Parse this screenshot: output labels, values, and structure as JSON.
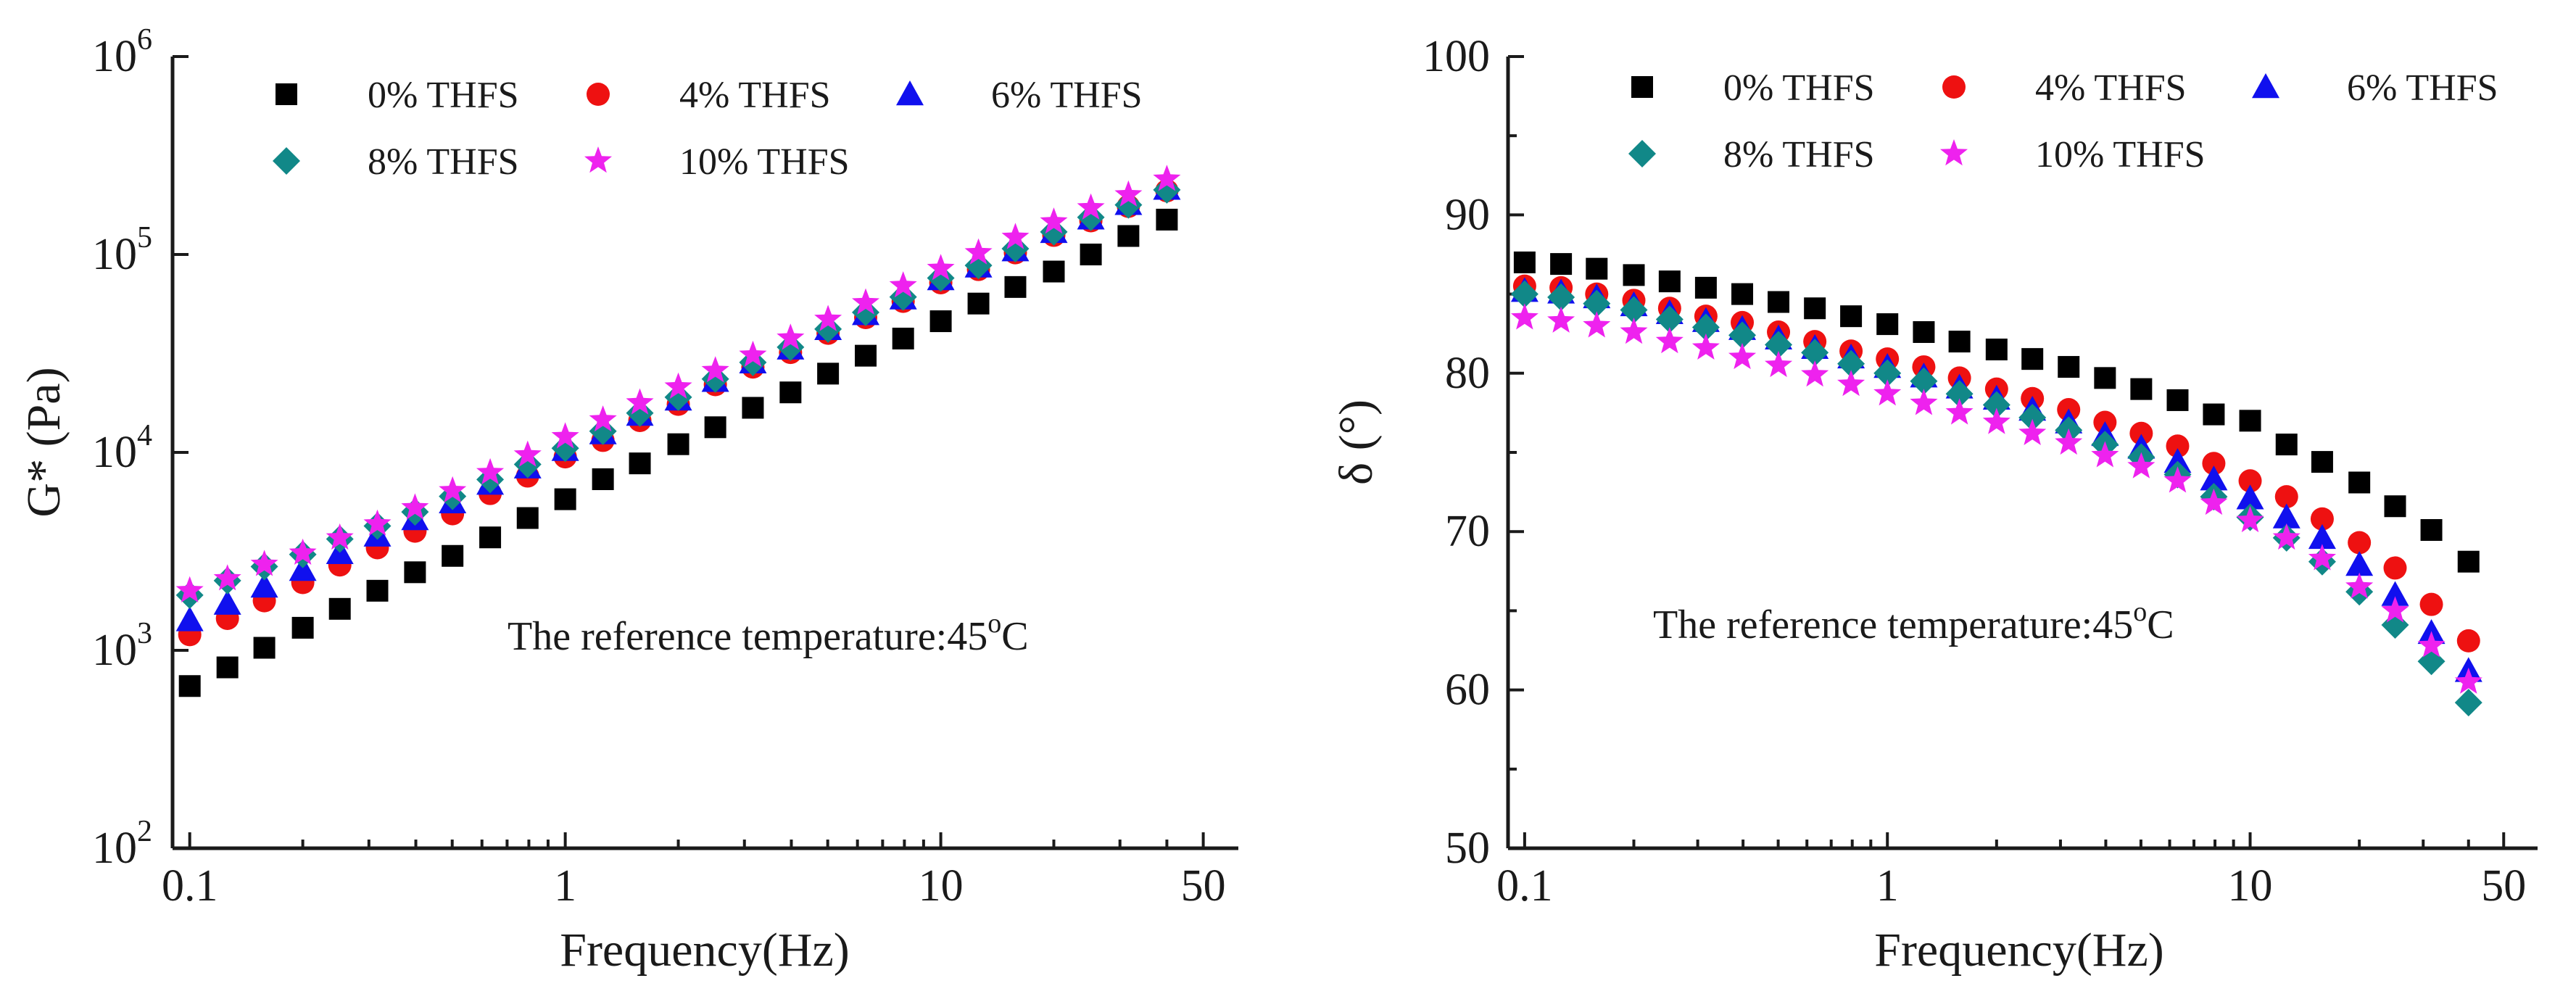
{
  "chart_data": [
    {
      "type": "scatter",
      "xscale": "log",
      "yscale": "log",
      "xlabel": "Frequency(Hz)",
      "ylabel": "G* (Pa)",
      "xlim": [
        0.09,
        62
      ],
      "ylim": [
        100,
        1000000
      ],
      "xticks": [
        {
          "value": 0.1,
          "label": "0.1"
        },
        {
          "value": 1,
          "label": "1"
        },
        {
          "value": 10,
          "label": "10"
        },
        {
          "value": 50,
          "label": "50"
        }
      ],
      "yticks": [
        {
          "value": 100,
          "base": "10",
          "exp": "2"
        },
        {
          "value": 1000,
          "base": "10",
          "exp": "3"
        },
        {
          "value": 10000,
          "base": "10",
          "exp": "4"
        },
        {
          "value": 100000,
          "base": "10",
          "exp": "5"
        },
        {
          "value": 1000000,
          "base": "10",
          "exp": "6"
        }
      ],
      "annotation": {
        "prefix": "The reference temperature:45",
        "sup": "o",
        "suffix": "C"
      },
      "legend_position": "top",
      "x": [
        0.1,
        0.126,
        0.158,
        0.2,
        0.251,
        0.316,
        0.398,
        0.501,
        0.631,
        0.794,
        1.0,
        1.26,
        1.58,
        2.0,
        2.51,
        3.16,
        3.98,
        5.01,
        6.31,
        7.94,
        10.0,
        12.6,
        15.8,
        20.0,
        25.1,
        31.6,
        40.0
      ],
      "series": [
        {
          "name": "0% THFS",
          "marker": "square",
          "color": "#000000",
          "values": [
            660,
            820,
            1030,
            1300,
            1620,
            2000,
            2480,
            3000,
            3720,
            4660,
            5800,
            7320,
            8800,
            11000,
            13400,
            16800,
            20100,
            25000,
            30800,
            37600,
            46000,
            56500,
            68500,
            82000,
            100000,
            124000,
            150000
          ]
        },
        {
          "name": "4% THFS",
          "marker": "circle",
          "color": "#ee1111",
          "values": [
            1200,
            1450,
            1780,
            2200,
            2700,
            3300,
            4000,
            4900,
            6200,
            7600,
            9500,
            11500,
            14500,
            17500,
            22000,
            27000,
            32000,
            40000,
            48000,
            58000,
            72000,
            84000,
            102000,
            125000,
            148000,
            175000,
            210000
          ]
        },
        {
          "name": "6% THFS",
          "marker": "triangle",
          "color": "#1010ee",
          "values": [
            1420,
            1720,
            2100,
            2550,
            3100,
            3800,
            4600,
            5600,
            6950,
            8400,
            10300,
            12500,
            15500,
            18500,
            23000,
            28500,
            33500,
            42000,
            50000,
            60000,
            75000,
            87000,
            105000,
            130000,
            152000,
            180000,
            215000
          ]
        },
        {
          "name": "8% THFS",
          "marker": "diamond",
          "color": "#118888",
          "values": [
            1900,
            2250,
            2650,
            3050,
            3650,
            4250,
            5000,
            6000,
            7300,
            8700,
            10500,
            12800,
            15800,
            19000,
            23500,
            28500,
            34000,
            42000,
            51000,
            61000,
            76000,
            88000,
            107000,
            130000,
            154000,
            178000,
            212000
          ]
        },
        {
          "name": "10% THFS",
          "marker": "star",
          "color": "#ee22ee",
          "values": [
            2000,
            2300,
            2720,
            3100,
            3700,
            4350,
            5250,
            6400,
            7900,
            9700,
            12000,
            14600,
            17800,
            21400,
            25900,
            31000,
            37800,
            47000,
            57000,
            69500,
            85000,
            102000,
            122000,
            146000,
            172000,
            200000,
            240000
          ]
        }
      ]
    },
    {
      "type": "scatter",
      "xscale": "log",
      "yscale": "linear",
      "xlabel": "Frequency(Hz)",
      "ylabel": "δ (°)",
      "xlim": [
        0.09,
        62
      ],
      "ylim": [
        50,
        100
      ],
      "xticks": [
        {
          "value": 0.1,
          "label": "0.1"
        },
        {
          "value": 1,
          "label": "1"
        },
        {
          "value": 10,
          "label": "10"
        },
        {
          "value": 50,
          "label": "50"
        }
      ],
      "yticks": [
        {
          "value": 50,
          "label": "50"
        },
        {
          "value": 60,
          "label": "60"
        },
        {
          "value": 70,
          "label": "70"
        },
        {
          "value": 80,
          "label": "80"
        },
        {
          "value": 90,
          "label": "90"
        },
        {
          "value": 100,
          "label": "100"
        }
      ],
      "annotation": {
        "prefix": "The reference temperature:45",
        "sup": "o",
        "suffix": "C"
      },
      "legend_position": "top",
      "x": [
        0.1,
        0.126,
        0.158,
        0.2,
        0.251,
        0.316,
        0.398,
        0.501,
        0.631,
        0.794,
        1.0,
        1.26,
        1.58,
        2.0,
        2.51,
        3.16,
        3.98,
        5.01,
        6.31,
        7.94,
        10.0,
        12.6,
        15.8,
        20.0,
        25.1,
        31.6,
        40.0
      ],
      "series": [
        {
          "name": "0% THFS",
          "marker": "square",
          "color": "#000000",
          "values": [
            87.0,
            86.9,
            86.6,
            86.2,
            85.8,
            85.4,
            85.0,
            84.5,
            84.1,
            83.6,
            83.1,
            82.6,
            82.0,
            81.5,
            80.9,
            80.4,
            79.7,
            79.0,
            78.3,
            77.4,
            77.0,
            75.5,
            74.4,
            73.1,
            71.6,
            70.1,
            68.1
          ]
        },
        {
          "name": "4% THFS",
          "marker": "circle",
          "color": "#ee1111",
          "values": [
            85.5,
            85.4,
            85.0,
            84.6,
            84.1,
            83.6,
            83.2,
            82.6,
            82.0,
            81.4,
            80.9,
            80.4,
            79.7,
            79.0,
            78.4,
            77.7,
            76.9,
            76.2,
            75.4,
            74.3,
            73.2,
            72.2,
            70.8,
            69.3,
            67.7,
            65.4,
            63.1
          ]
        },
        {
          "name": "6% THFS",
          "marker": "triangle",
          "color": "#1010ee",
          "values": [
            85.2,
            85.1,
            84.8,
            84.3,
            83.8,
            83.3,
            82.8,
            82.2,
            81.6,
            81.0,
            80.4,
            79.8,
            79.1,
            78.4,
            77.7,
            76.9,
            76.1,
            75.3,
            74.4,
            73.3,
            72.1,
            70.9,
            69.6,
            67.9,
            66.0,
            63.6,
            61.2
          ]
        },
        {
          "name": "8% THFS",
          "marker": "diamond",
          "color": "#118888",
          "values": [
            85.0,
            84.8,
            84.4,
            84.0,
            83.4,
            82.9,
            82.4,
            81.8,
            81.3,
            80.6,
            80.0,
            79.5,
            78.7,
            78.0,
            77.2,
            76.4,
            75.5,
            74.7,
            73.6,
            72.2,
            70.9,
            69.6,
            68.1,
            66.2,
            64.1,
            61.8,
            59.2
          ]
        },
        {
          "name": "10% THFS",
          "marker": "star",
          "color": "#ee22ee",
          "values": [
            83.5,
            83.3,
            83.0,
            82.6,
            82.0,
            81.6,
            81.0,
            80.5,
            79.9,
            79.3,
            78.7,
            78.1,
            77.5,
            76.9,
            76.2,
            75.6,
            74.8,
            74.1,
            73.2,
            71.8,
            70.7,
            69.6,
            68.3,
            66.5,
            65.0,
            62.8,
            60.5
          ]
        }
      ]
    }
  ]
}
